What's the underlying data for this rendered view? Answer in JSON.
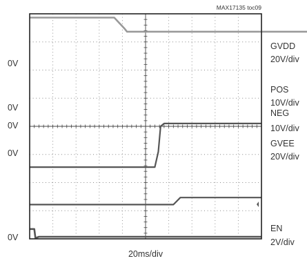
{
  "chart_data": {
    "type": "line",
    "title": "MAX17135 toc09",
    "xlabel": "20ms/div",
    "ylabel": "",
    "grid": true,
    "divisions": {
      "x": 10,
      "y": 8
    },
    "x_range": [
      0,
      200
    ],
    "series": [
      {
        "name": "GVDD",
        "scale": "20V/div",
        "ground_label": "0V",
        "ground_level": 0,
        "color": "#333333",
        "points": [
          [
            0,
            56
          ],
          [
            0.5,
            56
          ],
          [
            1,
            56
          ],
          [
            2,
            56
          ],
          [
            2.6,
            56
          ],
          [
            3.0,
            51
          ],
          [
            3.4,
            51
          ],
          [
            20,
            51
          ]
        ]
      },
      {
        "name": "POS",
        "scale": "10V/div",
        "ground_label": "0V",
        "ground_level": 0,
        "color": "#999999",
        "points": [
          [
            0,
            33
          ],
          [
            1,
            33
          ],
          [
            2,
            33
          ],
          [
            3,
            33
          ],
          [
            3.65,
            33
          ],
          [
            4.1,
            29
          ],
          [
            4.2,
            28
          ],
          [
            5,
            28
          ],
          [
            10,
            28
          ],
          [
            20,
            28
          ]
        ]
      },
      {
        "name": "NEG",
        "scale": "10V/div",
        "ground_label": "0V",
        "ground_level": 0,
        "color": "#555555",
        "points": [
          [
            0,
            -14.5
          ],
          [
            3,
            -14.5
          ],
          [
            5,
            -14.5
          ],
          [
            5.4,
            -14.5
          ],
          [
            5.55,
            -9
          ],
          [
            5.65,
            0
          ],
          [
            5.8,
            1
          ],
          [
            6,
            1
          ],
          [
            8,
            1
          ],
          [
            10,
            1
          ]
        ]
      },
      {
        "name": "GVEE",
        "scale": "20V/div",
        "ground_label": "0V",
        "ground_level": 0,
        "color": "#555555",
        "points": [
          [
            0,
            -36
          ],
          [
            3,
            -36
          ],
          [
            6,
            -36
          ],
          [
            6.2,
            -36
          ],
          [
            6.5,
            -31
          ],
          [
            6.7,
            -31
          ],
          [
            8,
            -31
          ],
          [
            10,
            -31
          ]
        ]
      },
      {
        "name": "EN",
        "scale": "2V/div",
        "ground_label": "0V",
        "ground_level": 0,
        "color": "#555555",
        "points": [
          [
            0,
            0.55
          ],
          [
            0.2,
            0.55
          ],
          [
            0.25,
            -0.1
          ],
          [
            0.4,
            0
          ],
          [
            5,
            0
          ],
          [
            10,
            0
          ]
        ]
      }
    ]
  }
}
